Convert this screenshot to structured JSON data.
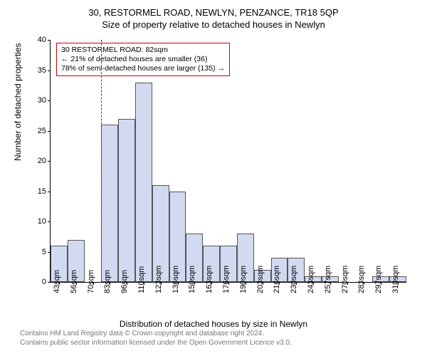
{
  "titles": {
    "main": "30, RESTORMEL ROAD, NEWLYN, PENZANCE, TR18 5QP",
    "sub": "Size of property relative to detached houses in Newlyn"
  },
  "axes": {
    "ylabel": "Number of detached properties",
    "xlabel": "Distribution of detached houses by size in Newlyn"
  },
  "chart": {
    "type": "histogram",
    "ylim": [
      0,
      40
    ],
    "ytick_step": 5,
    "y_ticks": [
      0,
      5,
      10,
      15,
      20,
      25,
      30,
      35,
      40
    ],
    "x_ticks": [
      "43sqm",
      "56sqm",
      "70sqm",
      "83sqm",
      "96sqm",
      "110sqm",
      "123sqm",
      "136sqm",
      "150sqm",
      "163sqm",
      "176sqm",
      "190sqm",
      "203sqm",
      "216sqm",
      "230sqm",
      "243sqm",
      "257sqm",
      "270sqm",
      "283sqm",
      "297sqm",
      "310sqm"
    ],
    "bar_color": "#d1daf0",
    "bar_border_color": "#555555",
    "background_color": "#ffffff",
    "reference_line_color": "#cc0000",
    "values": [
      6,
      7,
      0,
      26,
      27,
      33,
      16,
      15,
      8,
      6,
      6,
      8,
      2,
      4,
      4,
      1,
      1,
      0,
      0,
      1,
      1
    ],
    "bar_count": 21,
    "reference_index": 3
  },
  "annotation": {
    "line1": "30 RESTORMEL ROAD: 82sqm",
    "line2": "← 21% of detached houses are smaller (36)",
    "line3": "78% of semi-detached houses are larger (135) →"
  },
  "attribution": {
    "line1": "Contains HM Land Registry data © Crown copyright and database right 2024.",
    "line2": "Contains public sector information licensed under the Open Government Licence v3.0."
  }
}
